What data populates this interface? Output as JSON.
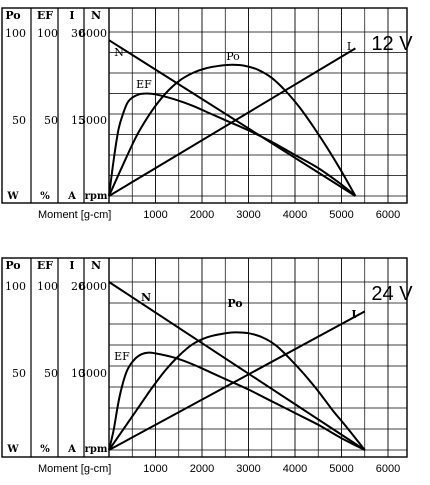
{
  "chart_data": [
    {
      "type": "line",
      "voltage_label": "12 V",
      "xlabel": "Moment [g-cm]",
      "xlim": [
        0,
        6400
      ],
      "x_ticks": [
        "1000",
        "2000",
        "3000",
        "4000",
        "5000",
        "6000"
      ],
      "y_axes": [
        {
          "header": "Po",
          "top": "100",
          "mid": "50",
          "unit": "W",
          "range": [
            0,
            100
          ]
        },
        {
          "header": "EF",
          "top": "100",
          "mid": "50",
          "unit": "%",
          "range": [
            0,
            100
          ]
        },
        {
          "header": "I",
          "top": "30",
          "mid": "15",
          "unit": "A",
          "range": [
            0,
            30
          ]
        },
        {
          "header": "N",
          "top": "6000",
          "mid": "3000",
          "unit": "rpm",
          "range": [
            0,
            6000
          ]
        }
      ],
      "grid": true,
      "series": [
        {
          "name": "N",
          "axis": "N",
          "x": [
            0,
            5300
          ],
          "values": [
            5700,
            0
          ]
        },
        {
          "name": "I",
          "axis": "I",
          "x": [
            0,
            5300
          ],
          "values": [
            0,
            27
          ]
        },
        {
          "name": "EF",
          "axis": "EF",
          "x": [
            0,
            100,
            200,
            300,
            400,
            500,
            650,
            800,
            1000,
            1400,
            1800,
            2200,
            2600,
            3000,
            3500,
            4000,
            4500,
            5000,
            5300
          ],
          "values": [
            0,
            22,
            40,
            50,
            57,
            60,
            62,
            62.5,
            62,
            59,
            55,
            50,
            45,
            40,
            33,
            25,
            17,
            7,
            0
          ]
        },
        {
          "name": "Po",
          "axis": "Po",
          "x": [
            0,
            300,
            600,
            900,
            1200,
            1500,
            1800,
            2100,
            2400,
            2650,
            2900,
            3200,
            3500,
            3800,
            4100,
            4400,
            4700,
            5000,
            5300
          ],
          "values": [
            0,
            19,
            37,
            51,
            62,
            70,
            75,
            78,
            79.5,
            80,
            79.5,
            77,
            72,
            64,
            54,
            42,
            29,
            15,
            0
          ]
        }
      ]
    },
    {
      "type": "line",
      "voltage_label": "24 V",
      "xlabel": "Moment [g-cm]",
      "xlim": [
        0,
        6400
      ],
      "x_ticks": [
        "1000",
        "2000",
        "3000",
        "4000",
        "5000",
        "6000"
      ],
      "y_axes": [
        {
          "header": "Po",
          "top": "100",
          "mid": "50",
          "unit": "W",
          "range": [
            0,
            100
          ]
        },
        {
          "header": "EF",
          "top": "100",
          "mid": "50",
          "unit": "%",
          "range": [
            0,
            100
          ]
        },
        {
          "header": "I",
          "top": "20",
          "mid": "10",
          "unit": "A",
          "range": [
            0,
            20
          ]
        },
        {
          "header": "N",
          "top": "6000",
          "mid": "3000",
          "unit": "rpm",
          "range": [
            0,
            6000
          ]
        }
      ],
      "grid": true,
      "series": [
        {
          "name": "N",
          "axis": "N",
          "x": [
            0,
            5500
          ],
          "values": [
            6000,
            0
          ]
        },
        {
          "name": "I",
          "axis": "I",
          "x": [
            0,
            5500
          ],
          "values": [
            0,
            16.5
          ]
        },
        {
          "name": "EF",
          "axis": "EF",
          "x": [
            0,
            100,
            200,
            300,
            400,
            550,
            700,
            850,
            1000,
            1400,
            1800,
            2200,
            2600,
            3000,
            3500,
            4000,
            4500,
            5000,
            5500
          ],
          "values": [
            0,
            12,
            28,
            40,
            48,
            54,
            57,
            58,
            57.5,
            55,
            51,
            46,
            41,
            36,
            29,
            22,
            15,
            7,
            0
          ]
        },
        {
          "name": "Po",
          "axis": "Po",
          "x": [
            0,
            300,
            600,
            900,
            1200,
            1500,
            1800,
            2100,
            2400,
            2700,
            3000,
            3300,
            3600,
            3900,
            4200,
            4500,
            4800,
            5100,
            5500
          ],
          "values": [
            0,
            12,
            24,
            36,
            47,
            56,
            63,
            67,
            69,
            70,
            69.5,
            67,
            62,
            54,
            45,
            35,
            24,
            14,
            0
          ]
        }
      ]
    }
  ]
}
